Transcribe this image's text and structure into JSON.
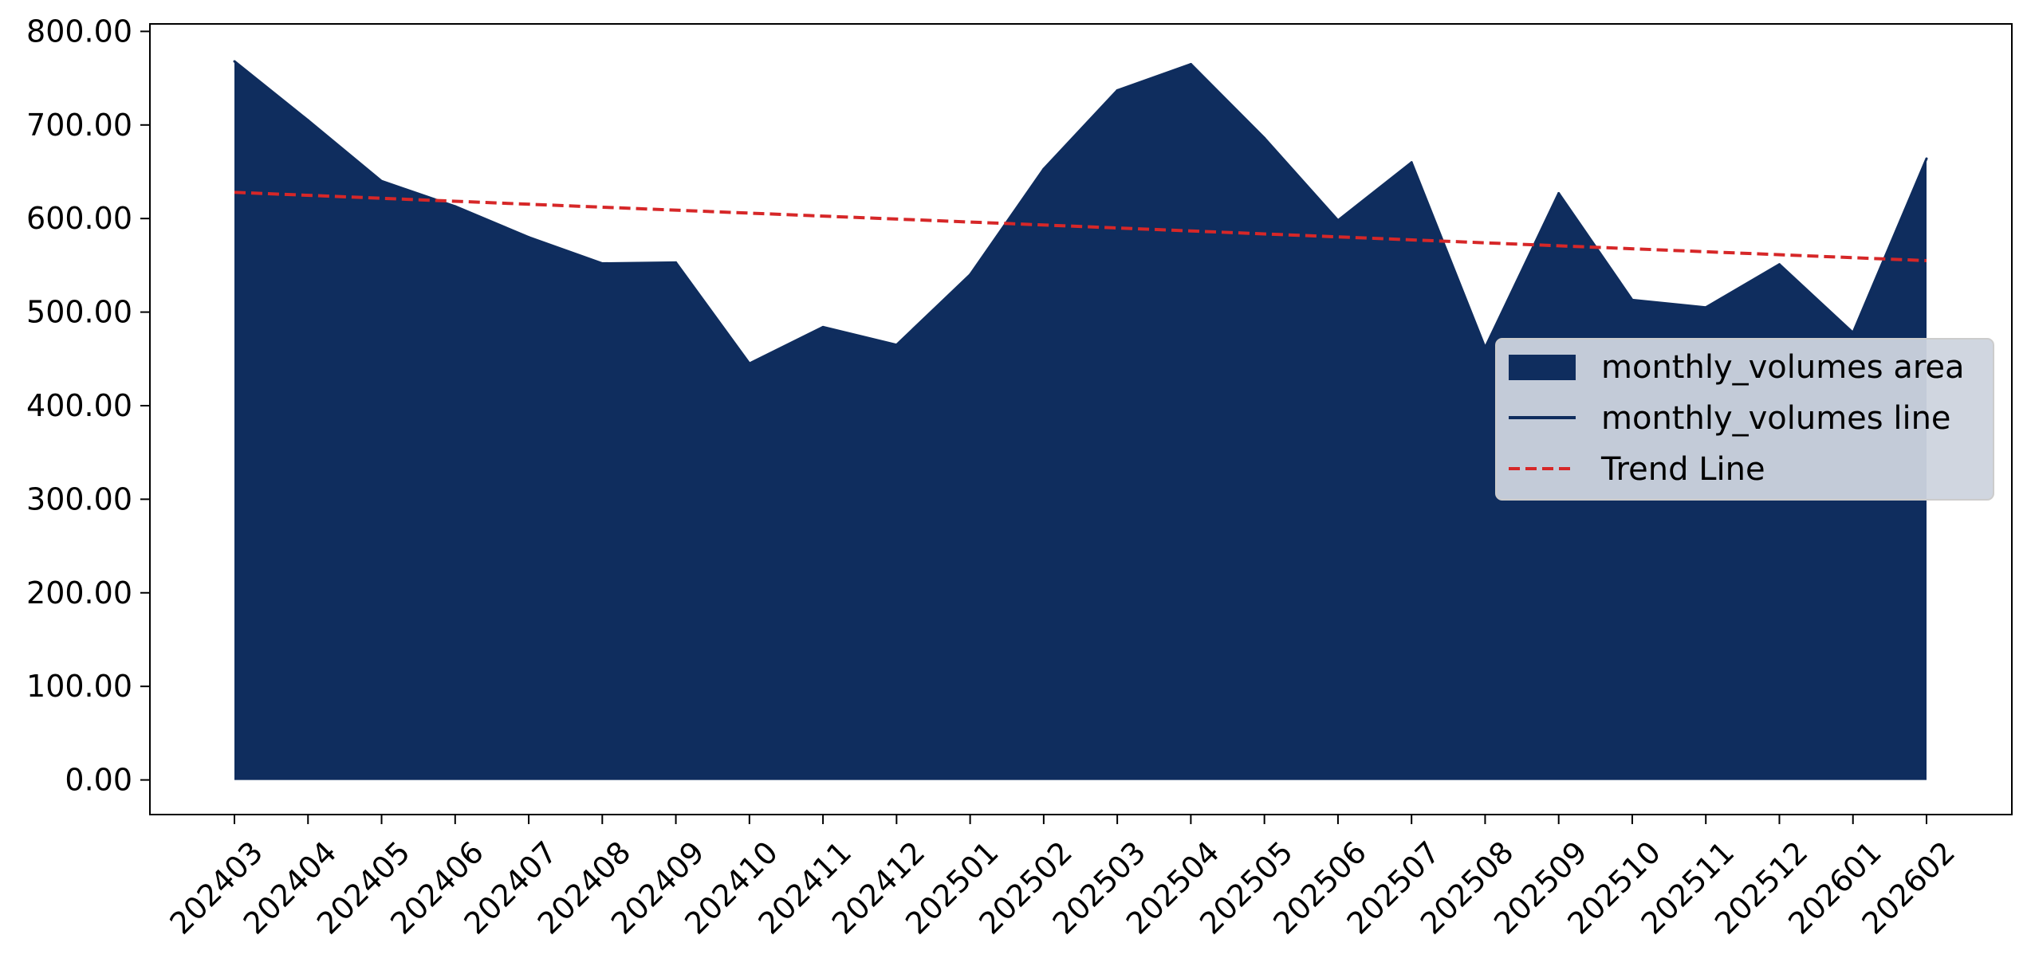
{
  "chart_data": {
    "type": "area",
    "categories": [
      "202403",
      "202404",
      "202405",
      "202406",
      "202407",
      "202408",
      "202409",
      "202410",
      "202411",
      "202412",
      "202501",
      "202502",
      "202503",
      "202504",
      "202505",
      "202506",
      "202507",
      "202508",
      "202509",
      "202510",
      "202511",
      "202512",
      "202601",
      "202602"
    ],
    "series": [
      {
        "name": "monthly_volumes area",
        "kind": "area",
        "values": [
          768,
          705,
          640,
          613,
          580,
          552,
          553,
          445,
          484,
          465,
          540,
          653,
          737,
          765,
          686,
          598,
          660,
          462,
          627,
          513,
          505,
          551,
          478,
          664
        ]
      },
      {
        "name": "monthly_volumes line",
        "kind": "line",
        "values": [
          768,
          705,
          640,
          613,
          580,
          552,
          553,
          445,
          484,
          465,
          540,
          653,
          737,
          765,
          686,
          598,
          660,
          462,
          627,
          513,
          505,
          551,
          478,
          664
        ]
      },
      {
        "name": "Trend Line",
        "kind": "trend",
        "start": 628,
        "end": 555
      }
    ],
    "ylim": [
      -37,
      808
    ],
    "y_ticks": [
      "800.00",
      "700.00",
      "600.00",
      "500.00",
      "400.00",
      "300.00",
      "200.00",
      "100.00",
      "0.00"
    ],
    "y_tick_values": [
      800,
      700,
      600,
      500,
      400,
      300,
      200,
      100,
      0
    ],
    "grid": false,
    "legend_position": "center-right",
    "title": "",
    "xlabel": "",
    "ylabel": "",
    "colors": {
      "area": "#0f2d5e",
      "line": "#0f2d5e",
      "trend": "#d62728",
      "legend_bg": "#cdd4de",
      "legend_border": "#cccccc",
      "axis": "#000000"
    }
  }
}
